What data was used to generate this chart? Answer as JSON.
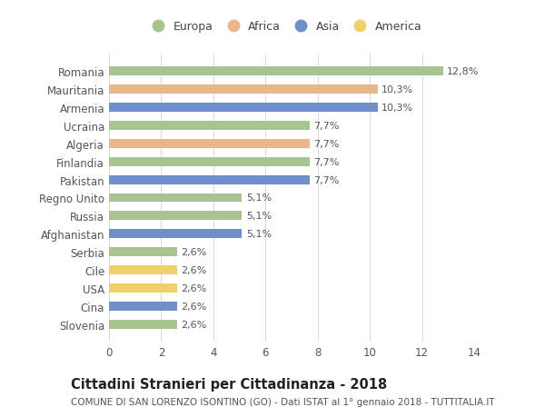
{
  "countries": [
    "Romania",
    "Mauritania",
    "Armenia",
    "Ucraina",
    "Algeria",
    "Finlandia",
    "Pakistan",
    "Regno Unito",
    "Russia",
    "Afghanistan",
    "Serbia",
    "Cile",
    "USA",
    "Cina",
    "Slovenia"
  ],
  "values": [
    12.8,
    10.3,
    10.3,
    7.7,
    7.7,
    7.7,
    7.7,
    5.1,
    5.1,
    5.1,
    2.6,
    2.6,
    2.6,
    2.6,
    2.6
  ],
  "labels": [
    "12,8%",
    "10,3%",
    "10,3%",
    "7,7%",
    "7,7%",
    "7,7%",
    "7,7%",
    "5,1%",
    "5,1%",
    "5,1%",
    "2,6%",
    "2,6%",
    "2,6%",
    "2,6%",
    "2,6%"
  ],
  "continents": [
    "Europa",
    "Africa",
    "Asia",
    "Europa",
    "Africa",
    "Europa",
    "Asia",
    "Europa",
    "Europa",
    "Asia",
    "Europa",
    "America",
    "America",
    "Asia",
    "Europa"
  ],
  "continent_colors": {
    "Europa": "#a8c490",
    "Africa": "#e8b88a",
    "Asia": "#6e8fc8",
    "America": "#f0d068"
  },
  "legend_order": [
    "Europa",
    "Africa",
    "Asia",
    "America"
  ],
  "xlim": [
    0,
    14
  ],
  "xticks": [
    0,
    2,
    4,
    6,
    8,
    10,
    12,
    14
  ],
  "title": "Cittadini Stranieri per Cittadinanza - 2018",
  "subtitle": "COMUNE DI SAN LORENZO ISONTINO (GO) - Dati ISTAT al 1° gennaio 2018 - TUTTITALIA.IT",
  "background_color": "#ffffff",
  "bar_height": 0.5,
  "grid_color": "#d8d8d8",
  "label_fontsize": 8,
  "ytick_fontsize": 8.5,
  "xtick_fontsize": 8.5,
  "title_fontsize": 10.5,
  "subtitle_fontsize": 7.5
}
